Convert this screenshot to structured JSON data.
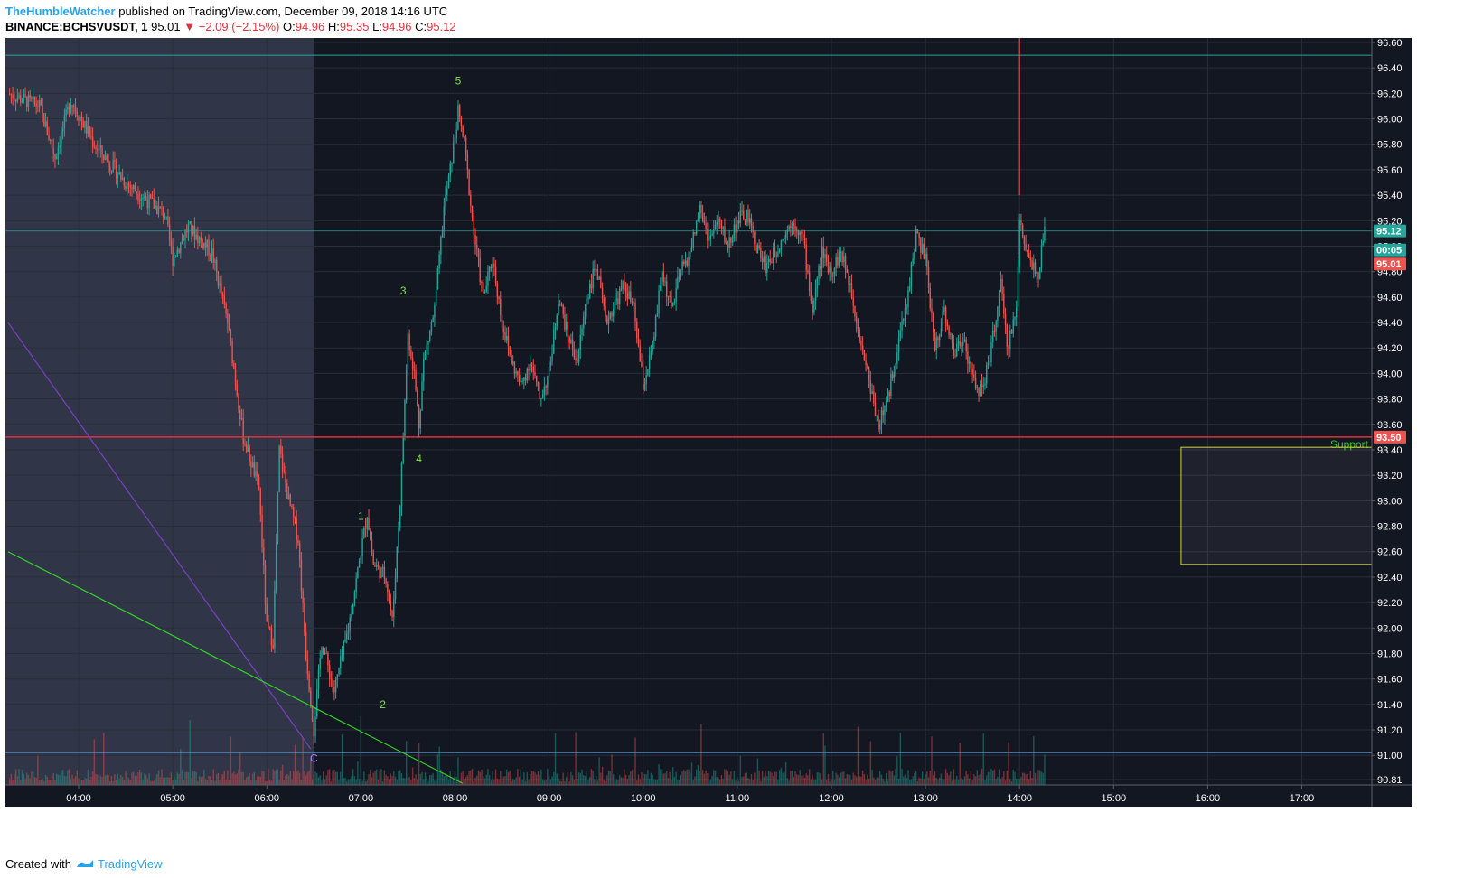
{
  "header": {
    "author": "TheHumbleWatcher",
    "published": "published on TradingView.com, December 09, 2018 14:16 UTC",
    "symbol": "BINANCE:BCHSVUSDT, 1",
    "last": "95.01",
    "change": "▼ −2.09 (−2.15%)",
    "o_label": "O:",
    "o_value": "94.96",
    "h_label": "H:",
    "h_value": "95.35",
    "l_label": "L:",
    "l_value": "94.96",
    "c_label": "C:",
    "c_value": "95.12"
  },
  "footer": {
    "created_with": "Created with",
    "brand": "TradingView"
  },
  "colors": {
    "background": "#131722",
    "shaded_region": "#363c4e",
    "up": "#26a69a",
    "down": "#ef5350",
    "support_line": "#e0323c",
    "support_label": "#35d126",
    "box_border": "#d4d43a",
    "wave_label": "#7fe04a",
    "trend_purple": "#7b3fc4",
    "trend_green": "#35d126",
    "price_label_up": "#26a69a",
    "price_label_down": "#ef5350"
  },
  "chart_data": {
    "type": "candlestick",
    "symbol": "BINANCE:BCHSVUSDT",
    "interval": "1",
    "x_ticks": [
      "04:00",
      "05:00",
      "06:00",
      "07:00",
      "08:00",
      "09:00",
      "10:00",
      "11:00",
      "12:00",
      "13:00",
      "14:00",
      "15:00",
      "16:00",
      "17:00"
    ],
    "y_ticks": [
      "96.60",
      "96.40",
      "96.20",
      "96.00",
      "95.80",
      "95.60",
      "95.40",
      "95.20",
      "95.00",
      "94.80",
      "94.60",
      "94.40",
      "94.20",
      "94.00",
      "93.80",
      "93.60",
      "93.40",
      "93.20",
      "93.00",
      "92.80",
      "92.60",
      "92.40",
      "92.20",
      "92.00",
      "91.80",
      "91.60",
      "91.40",
      "91.20",
      "91.00",
      "90.81"
    ],
    "ylim": [
      90.81,
      96.6
    ],
    "grid": true,
    "price_path": [
      {
        "t": "03:15",
        "price": 96.2
      },
      {
        "t": "03:35",
        "price": 96.1
      },
      {
        "t": "03:45",
        "price": 95.7
      },
      {
        "t": "03:55",
        "price": 96.15
      },
      {
        "t": "04:10",
        "price": 95.8
      },
      {
        "t": "04:30",
        "price": 95.5
      },
      {
        "t": "04:55",
        "price": 95.25
      },
      {
        "t": "05:00",
        "price": 94.9
      },
      {
        "t": "05:10",
        "price": 95.15
      },
      {
        "t": "05:25",
        "price": 94.95
      },
      {
        "t": "05:35",
        "price": 94.4
      },
      {
        "t": "05:45",
        "price": 93.5
      },
      {
        "t": "05:55",
        "price": 93.1
      },
      {
        "t": "06:00",
        "price": 92.0
      },
      {
        "t": "06:04",
        "price": 91.9
      },
      {
        "t": "06:08",
        "price": 93.4
      },
      {
        "t": "06:14",
        "price": 93.0
      },
      {
        "t": "06:20",
        "price": 92.7
      },
      {
        "t": "06:25",
        "price": 91.8
      },
      {
        "t": "06:30",
        "price": 91.2
      },
      {
        "t": "06:35",
        "price": 91.9
      },
      {
        "t": "06:43",
        "price": 91.5
      },
      {
        "t": "06:52",
        "price": 92.0
      },
      {
        "t": "07:00",
        "price": 92.6
      },
      {
        "t": "07:04",
        "price": 92.9
      },
      {
        "t": "07:08",
        "price": 92.5
      },
      {
        "t": "07:16",
        "price": 92.4
      },
      {
        "t": "07:20",
        "price": 92.05
      },
      {
        "t": "07:25",
        "price": 93.0
      },
      {
        "t": "07:30",
        "price": 94.3
      },
      {
        "t": "07:34",
        "price": 94.0
      },
      {
        "t": "07:37",
        "price": 93.6
      },
      {
        "t": "07:40",
        "price": 94.1
      },
      {
        "t": "07:47",
        "price": 94.5
      },
      {
        "t": "07:53",
        "price": 95.3
      },
      {
        "t": "07:57",
        "price": 95.6
      },
      {
        "t": "08:02",
        "price": 96.05
      },
      {
        "t": "08:06",
        "price": 95.8
      },
      {
        "t": "08:12",
        "price": 95.1
      },
      {
        "t": "08:18",
        "price": 94.6
      },
      {
        "t": "08:24",
        "price": 94.9
      },
      {
        "t": "08:30",
        "price": 94.4
      },
      {
        "t": "08:36",
        "price": 94.1
      },
      {
        "t": "08:42",
        "price": 93.9
      },
      {
        "t": "08:48",
        "price": 94.1
      },
      {
        "t": "08:54",
        "price": 93.8
      },
      {
        "t": "09:00",
        "price": 94.0
      },
      {
        "t": "09:06",
        "price": 94.6
      },
      {
        "t": "09:12",
        "price": 94.3
      },
      {
        "t": "09:18",
        "price": 94.1
      },
      {
        "t": "09:24",
        "price": 94.6
      },
      {
        "t": "09:30",
        "price": 94.85
      },
      {
        "t": "09:36",
        "price": 94.4
      },
      {
        "t": "09:42",
        "price": 94.55
      },
      {
        "t": "09:48",
        "price": 94.7
      },
      {
        "t": "09:54",
        "price": 94.5
      },
      {
        "t": "10:00",
        "price": 93.9
      },
      {
        "t": "10:06",
        "price": 94.2
      },
      {
        "t": "10:12",
        "price": 94.8
      },
      {
        "t": "10:18",
        "price": 94.5
      },
      {
        "t": "10:24",
        "price": 94.8
      },
      {
        "t": "10:30",
        "price": 94.95
      },
      {
        "t": "10:36",
        "price": 95.3
      },
      {
        "t": "10:42",
        "price": 95.05
      },
      {
        "t": "10:48",
        "price": 95.2
      },
      {
        "t": "10:54",
        "price": 95.0
      },
      {
        "t": "11:00",
        "price": 95.2
      },
      {
        "t": "11:06",
        "price": 95.25
      },
      {
        "t": "11:12",
        "price": 95.0
      },
      {
        "t": "11:18",
        "price": 94.85
      },
      {
        "t": "11:24",
        "price": 94.95
      },
      {
        "t": "11:30",
        "price": 95.1
      },
      {
        "t": "11:36",
        "price": 95.2
      },
      {
        "t": "11:42",
        "price": 95.05
      },
      {
        "t": "11:48",
        "price": 94.5
      },
      {
        "t": "11:54",
        "price": 94.95
      },
      {
        "t": "12:00",
        "price": 94.8
      },
      {
        "t": "12:06",
        "price": 94.95
      },
      {
        "t": "12:12",
        "price": 94.7
      },
      {
        "t": "12:18",
        "price": 94.3
      },
      {
        "t": "12:24",
        "price": 93.95
      },
      {
        "t": "12:30",
        "price": 93.6
      },
      {
        "t": "12:36",
        "price": 93.8
      },
      {
        "t": "12:42",
        "price": 94.2
      },
      {
        "t": "12:48",
        "price": 94.55
      },
      {
        "t": "12:54",
        "price": 95.1
      },
      {
        "t": "13:00",
        "price": 94.9
      },
      {
        "t": "13:06",
        "price": 94.2
      },
      {
        "t": "13:12",
        "price": 94.5
      },
      {
        "t": "13:18",
        "price": 94.15
      },
      {
        "t": "13:24",
        "price": 94.3
      },
      {
        "t": "13:30",
        "price": 93.95
      },
      {
        "t": "13:36",
        "price": 93.85
      },
      {
        "t": "13:42",
        "price": 94.2
      },
      {
        "t": "13:48",
        "price": 94.7
      },
      {
        "t": "13:52",
        "price": 94.2
      },
      {
        "t": "13:58",
        "price": 94.5
      },
      {
        "t": "14:00",
        "price": 95.2
      },
      {
        "t": "14:06",
        "price": 94.9
      },
      {
        "t": "14:12",
        "price": 94.8
      },
      {
        "t": "14:16",
        "price": 95.1
      }
    ],
    "support": {
      "price": 93.5,
      "label": "Support"
    },
    "target_box": {
      "t_start": "15:43",
      "t_end": "17:52",
      "price_top": 93.42,
      "price_bottom": 92.5
    },
    "shaded_range": {
      "t_start": "03:15",
      "t_end": "06:30"
    },
    "top_line_price": 96.5,
    "current_price_line": 95.12,
    "bottom_line_price": 91.02,
    "cursor_time": "14:00",
    "wave_labels": [
      {
        "label": "5",
        "t": "08:02",
        "price": 96.27
      },
      {
        "label": "3",
        "t": "07:27",
        "price": 94.62
      },
      {
        "label": "4",
        "t": "07:37",
        "price": 93.3
      },
      {
        "label": "1",
        "t": "07:00",
        "price": 92.85
      },
      {
        "label": "2",
        "t": "07:14",
        "price": 91.37
      },
      {
        "label": "C",
        "t": "06:30",
        "price": 90.95
      }
    ],
    "price_labels": [
      {
        "text": "95.12",
        "price": 95.12,
        "color": "up"
      },
      {
        "text": "00:05",
        "price": 94.97,
        "color": "up"
      },
      {
        "text": "95.01",
        "price": 94.86,
        "color": "down"
      },
      {
        "text": "93.50",
        "price": 93.5,
        "color": "down"
      }
    ],
    "trendlines": [
      {
        "color": "trend_purple",
        "from": {
          "t": "03:15",
          "price": 94.4
        },
        "to": {
          "t": "06:28",
          "price": 91.05
        }
      },
      {
        "color": "trend_green",
        "from": {
          "t": "03:15",
          "price": 92.6
        },
        "to": {
          "t": "08:05",
          "price": 90.78
        }
      }
    ]
  }
}
